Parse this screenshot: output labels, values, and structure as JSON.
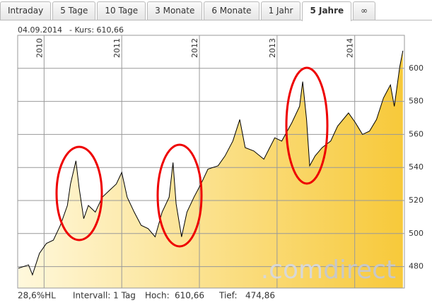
{
  "tabs": [
    "Intraday",
    "5 Tage",
    "10 Tage",
    "3 Monate",
    "6 Monate",
    "1 Jahr",
    "5 Jahre",
    "∞"
  ],
  "active_tab": 6,
  "header": {
    "date": "04.09.2014",
    "price_label": "- Kurs: 610,66"
  },
  "footer": {
    "range": "28,6%HL",
    "interval": "Intervall: 1 Tag",
    "high_label": "Hoch:",
    "high": "610,66",
    "low_label": "Tief:",
    "low": "474,86"
  },
  "watermark": {
    "prefix": ".com",
    "brand": "direct"
  },
  "chart_data": {
    "type": "area",
    "x": [
      2009.67,
      2009.8,
      2009.85,
      2009.94,
      2010.03,
      2010.12,
      2010.21,
      2010.3,
      2010.34,
      2010.41,
      2010.45,
      2010.51,
      2010.57,
      2010.66,
      2010.75,
      2010.84,
      2010.93,
      2011.0,
      2011.07,
      2011.16,
      2011.25,
      2011.34,
      2011.43,
      2011.52,
      2011.61,
      2011.66,
      2011.7,
      2011.77,
      2011.84,
      2011.93,
      2012.02,
      2012.11,
      2012.24,
      2012.33,
      2012.43,
      2012.52,
      2012.59,
      2012.7,
      2012.83,
      2012.97,
      2013.06,
      2013.19,
      2013.29,
      2013.33,
      2013.38,
      2013.42,
      2013.49,
      2013.58,
      2013.69,
      2013.78,
      2013.92,
      2014.01,
      2014.1,
      2014.19,
      2014.28,
      2014.37,
      2014.46,
      2014.51,
      2014.58,
      2014.62
    ],
    "values": [
      479,
      481,
      475,
      488,
      494,
      496,
      505,
      517,
      530,
      544,
      528,
      509,
      517,
      513,
      522,
      526,
      530,
      537,
      522,
      513,
      505,
      503,
      498,
      513,
      522,
      543,
      518,
      498,
      513,
      522,
      530,
      539,
      541,
      547,
      556,
      569,
      552,
      550,
      545,
      558,
      556,
      567,
      577,
      592,
      569,
      541,
      547,
      552,
      556,
      565,
      573,
      567,
      560,
      562,
      569,
      582,
      590,
      577,
      601,
      610.66
    ],
    "color": "#000000",
    "fill_from": "#fff8dc",
    "fill_to": "#f7c93a",
    "xlim": [
      2009.66,
      2014.64
    ],
    "ylim": [
      467,
      620
    ],
    "xticks": [
      2010,
      2011,
      2012,
      2013,
      2014
    ],
    "yticks": [
      480,
      500,
      520,
      540,
      560,
      580,
      600
    ],
    "grid": true
  }
}
